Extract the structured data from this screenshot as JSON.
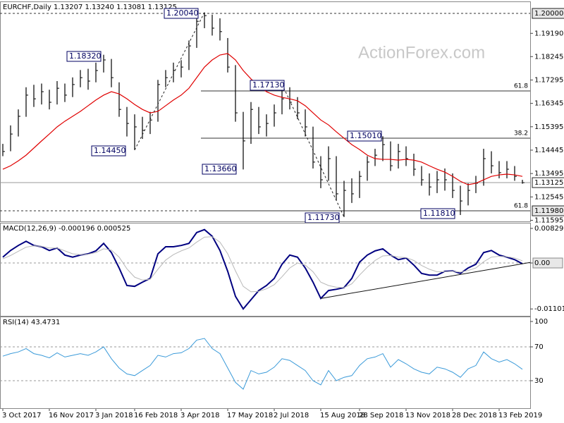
{
  "chart_data": [
    {
      "type": "ohlc",
      "title": "EURCHF,Daily  1.13207 1.13240 1.13081 1.13125",
      "watermark": "ActionForex.com",
      "categories": [
        "3 Oct 2017",
        null,
        null,
        null,
        null,
        null,
        "16 Nov 2017",
        null,
        null,
        null,
        null,
        null,
        "3 Jan 2018",
        null,
        null,
        null,
        null,
        "16 Feb 2018",
        null,
        null,
        null,
        null,
        null,
        "3 Apr 2018",
        null,
        null,
        null,
        null,
        null,
        "17 May 2018",
        null,
        null,
        null,
        null,
        null,
        "2 Jul 2018",
        null,
        null,
        null,
        null,
        null,
        "15 Aug 2018",
        null,
        null,
        null,
        null,
        "28 Sep 2018",
        null,
        null,
        null,
        null,
        null,
        "13 Nov 2018",
        null,
        null,
        null,
        null,
        null,
        "28 Dec 2018",
        null,
        null,
        null,
        null,
        null,
        "13 Feb 2019",
        null,
        null,
        null
      ],
      "high": [
        1.147,
        1.1545,
        1.161,
        1.17,
        1.171,
        1.1715,
        1.169,
        1.1725,
        1.1715,
        1.174,
        1.177,
        1.1775,
        1.18,
        1.1832,
        1.1815,
        1.172,
        1.162,
        1.159,
        1.158,
        1.16,
        1.173,
        1.177,
        1.18,
        1.181,
        1.189,
        1.1985,
        1.2004,
        1.1995,
        1.198,
        1.19,
        1.179,
        1.16,
        1.164,
        1.162,
        1.159,
        1.163,
        1.1713,
        1.17,
        1.166,
        1.161,
        1.154,
        1.142,
        1.146,
        1.142,
        1.132,
        1.133,
        1.136,
        1.142,
        1.145,
        1.1501,
        1.148,
        1.147,
        1.146,
        1.143,
        1.138,
        1.135,
        1.136,
        1.137,
        1.135,
        1.13,
        1.131,
        1.134,
        1.145,
        1.144,
        1.14,
        1.14,
        1.138,
        1.1324
      ],
      "low": [
        1.142,
        1.144,
        1.15,
        1.158,
        1.162,
        1.163,
        1.161,
        1.163,
        1.164,
        1.166,
        1.17,
        1.169,
        1.172,
        1.176,
        1.17,
        1.158,
        1.15,
        1.1445,
        1.149,
        1.151,
        1.156,
        1.17,
        1.172,
        1.174,
        1.177,
        1.186,
        1.194,
        1.191,
        1.189,
        1.176,
        1.156,
        1.1366,
        1.147,
        1.151,
        1.15,
        1.154,
        1.159,
        1.161,
        1.157,
        1.15,
        1.137,
        1.129,
        1.132,
        1.124,
        1.1173,
        1.123,
        1.125,
        1.132,
        1.138,
        1.14,
        1.136,
        1.137,
        1.138,
        1.134,
        1.13,
        1.126,
        1.127,
        1.128,
        1.125,
        1.1181,
        1.122,
        1.127,
        1.13,
        1.135,
        1.133,
        1.133,
        1.132,
        1.13081
      ],
      "close": [
        1.1439,
        1.151,
        1.1582,
        1.1668,
        1.1653,
        1.1682,
        1.1639,
        1.1696,
        1.1668,
        1.1711,
        1.1739,
        1.1725,
        1.1768,
        1.1811,
        1.1739,
        1.161,
        1.1553,
        1.1539,
        1.1525,
        1.1567,
        1.1711,
        1.1739,
        1.1768,
        1.1782,
        1.1868,
        1.1968,
        1.1991,
        1.194,
        1.1926,
        1.1782,
        1.1596,
        1.1482,
        1.161,
        1.1539,
        1.1553,
        1.1596,
        1.1653,
        1.1639,
        1.1596,
        1.1539,
        1.1396,
        1.1324,
        1.141,
        1.1267,
        1.1281,
        1.1267,
        1.1338,
        1.1396,
        1.1424,
        1.1467,
        1.1381,
        1.1439,
        1.141,
        1.1367,
        1.1324,
        1.1295,
        1.1324,
        1.1324,
        1.1281,
        1.1238,
        1.1281,
        1.131,
        1.141,
        1.1381,
        1.1353,
        1.1367,
        1.1338,
        1.13125
      ],
      "color": "#000000",
      "ma": {
        "color": "#e00000",
        "values": [
          1.1367,
          1.1381,
          1.1401,
          1.1424,
          1.1453,
          1.1482,
          1.151,
          1.1539,
          1.1562,
          1.1582,
          1.1602,
          1.1625,
          1.1648,
          1.1668,
          1.1682,
          1.1673,
          1.1653,
          1.163,
          1.161,
          1.1596,
          1.1602,
          1.1625,
          1.1648,
          1.1668,
          1.1696,
          1.1739,
          1.1782,
          1.1811,
          1.1831,
          1.1837,
          1.1811,
          1.1768,
          1.1734,
          1.1705,
          1.1682,
          1.1668,
          1.1659,
          1.1653,
          1.1645,
          1.1625,
          1.1596,
          1.1567,
          1.1547,
          1.1519,
          1.1493,
          1.1467,
          1.1447,
          1.1424,
          1.141,
          1.1407,
          1.1407,
          1.1404,
          1.1407,
          1.1404,
          1.1396,
          1.1381,
          1.1367,
          1.1355,
          1.1338,
          1.1318,
          1.1304,
          1.131,
          1.1324,
          1.1338,
          1.1344,
          1.1347,
          1.1344,
          1.1338
        ]
      },
      "ylim": [
        1.1158,
        1.2043
      ],
      "yticks": [
        {
          "value": 1.1919,
          "label": "1.19190"
        },
        {
          "value": 1.18245,
          "label": "1.18245"
        },
        {
          "value": 1.17295,
          "label": "1.17295"
        },
        {
          "value": 1.16345,
          "label": "1.16345"
        },
        {
          "value": 1.15395,
          "label": "1.15395"
        },
        {
          "value": 1.14445,
          "label": "1.14445"
        },
        {
          "value": 1.13495,
          "label": "1.13495"
        },
        {
          "value": 1.12545,
          "label": "1.12545"
        },
        {
          "value": 1.11595,
          "label": "1.11595"
        }
      ],
      "marker_labels": [
        {
          "value": 1.2,
          "label": "1.20000"
        },
        {
          "value": 1.13125,
          "label": "1.13125"
        },
        {
          "value": 1.1198,
          "label": "1.11980"
        }
      ],
      "annotations": [
        {
          "value": 1.2004,
          "label": "1.20040"
        },
        {
          "value": 1.1832,
          "label": "1.18320"
        },
        {
          "value": 1.1445,
          "label": "1.14450"
        },
        {
          "value": 1.1366,
          "label": "1.13660"
        },
        {
          "value": 1.1713,
          "label": "1.17130"
        },
        {
          "value": 1.1501,
          "label": "1.15010"
        },
        {
          "value": 1.1173,
          "label": "1.11730"
        },
        {
          "value": 1.1181,
          "label": "1.11810"
        }
      ],
      "fib_levels": [
        {
          "value": 1.1685,
          "label": "61.8"
        },
        {
          "value": 1.1493,
          "label": "38.2"
        },
        {
          "value": 1.1198,
          "label": "61.8"
        }
      ]
    },
    {
      "type": "line",
      "title": "MACD(12,26,9) -0.000196 0.000525",
      "series": [
        {
          "color": "#000080",
          "values": [
            0.0014,
            0.003,
            0.0042,
            0.0052,
            0.0042,
            0.0039,
            0.003,
            0.0036,
            0.0019,
            0.0014,
            0.0019,
            0.0022,
            0.0029,
            0.0047,
            0.0025,
            -0.0012,
            -0.0054,
            -0.0056,
            -0.0046,
            -0.0037,
            0.0022,
            0.0039,
            0.0039,
            0.0042,
            0.0047,
            0.0073,
            0.008,
            0.0064,
            0.003,
            -0.002,
            -0.008,
            -0.011,
            -0.0088,
            -0.0066,
            -0.0054,
            -0.0037,
            -0.0003,
            0.0019,
            0.0014,
            -0.0012,
            -0.0046,
            -0.0085,
            -0.0066,
            -0.0063,
            -0.0059,
            -0.0037,
            0.0002,
            0.0019,
            0.0029,
            0.0034,
            0.0019,
            0.0008,
            0.0012,
            -0.0005,
            -0.0025,
            -0.0029,
            -0.0029,
            -0.002,
            -0.0019,
            -0.0025,
            -0.0012,
            -0.0003,
            0.0025,
            0.003,
            0.0019,
            0.0014,
            0.0008,
            -0.000196
          ]
        },
        {
          "color": "#b8b8b8",
          "values": [
            0.001,
            0.0018,
            0.0028,
            0.0038,
            0.0041,
            0.004,
            0.0036,
            0.0036,
            0.0029,
            0.0022,
            0.002,
            0.0021,
            0.0025,
            0.0034,
            0.0031,
            0.0014,
            -0.0014,
            -0.0034,
            -0.0041,
            -0.0039,
            -0.0015,
            0.0007,
            0.002,
            0.0029,
            0.0036,
            0.005,
            0.0062,
            0.0063,
            0.005,
            0.0022,
            -0.0019,
            -0.0056,
            -0.0069,
            -0.0068,
            -0.0062,
            -0.0052,
            -0.0033,
            -0.0012,
            0.0,
            -0.0005,
            -0.0021,
            -0.0046,
            -0.0054,
            -0.0058,
            -0.0059,
            -0.005,
            -0.0029,
            -0.001,
            0.0006,
            0.0017,
            0.0018,
            0.0014,
            0.0013,
            0.0006,
            -0.0006,
            -0.0015,
            -0.0021,
            -0.0021,
            -0.002,
            -0.0022,
            -0.0018,
            -0.0012,
            0.0003,
            0.0014,
            0.0016,
            0.0015,
            0.0012,
            0.000525
          ]
        }
      ],
      "ylim": [
        -0.0125,
        0.0093
      ],
      "yticks": [
        0.008292,
        {
          "value": 0,
          "label": "0.00"
        },
        -0.011015
      ]
    },
    {
      "type": "line",
      "title": "RSI(14) 43.4731",
      "series": [
        {
          "color": "#3a9ad9",
          "values": [
            59,
            62,
            64,
            68,
            62,
            60,
            57,
            63,
            58,
            60,
            62,
            60,
            64,
            70,
            56,
            45,
            38,
            36,
            42,
            48,
            60,
            58,
            62,
            63,
            68,
            78,
            80,
            68,
            62,
            45,
            28,
            20,
            42,
            38,
            40,
            46,
            56,
            54,
            48,
            42,
            30,
            25,
            42,
            30,
            34,
            36,
            48,
            56,
            58,
            62,
            46,
            55,
            50,
            44,
            40,
            38,
            46,
            44,
            40,
            34,
            44,
            48,
            64,
            56,
            52,
            55,
            50,
            43.4731
          ]
        }
      ],
      "ylim": [
        0,
        100
      ],
      "yticks": [
        100,
        70,
        30
      ]
    }
  ]
}
